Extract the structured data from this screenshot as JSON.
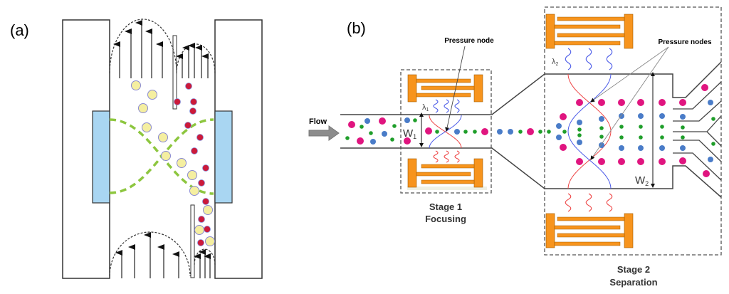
{
  "panel_a": {
    "label": "(a)"
  },
  "panel_b": {
    "label": "(b)",
    "flow_label": "Flow",
    "w1_main": "W",
    "w1_sub": "1",
    "w2_main": "W",
    "w2_sub": "2",
    "lambda1_main": "λ",
    "lambda1_sub": "1",
    "lambda2_main": "λ",
    "lambda2_sub": "2",
    "pressure_node": "Pressure node",
    "pressure_nodes": "Pressure nodes",
    "stage1_title": "Stage 1",
    "stage1_subtitle": "Focusing",
    "stage2_title": "Stage 2",
    "stage2_subtitle": "Separation"
  },
  "colors": {
    "electrode_blue": "#a9d6f2",
    "field_green": "#8dc63f",
    "large_particle": "#f5efa0",
    "small_particle": "#cc1a3a",
    "particle_outline": "#8a8ad0",
    "idt_orange": "#f7941d",
    "magenta": "#e0157f",
    "blue": "#4a7cc8",
    "green": "#1f9e2a",
    "wave_red": "#ee4444",
    "wave_blue": "#4a5ae8"
  }
}
